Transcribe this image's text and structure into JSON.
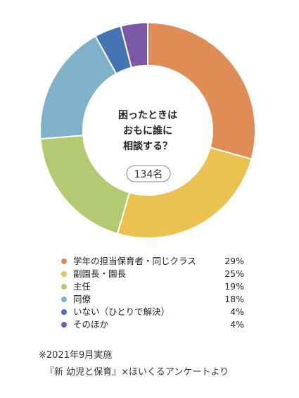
{
  "chart_data": {
    "type": "pie",
    "style": "donut",
    "center_text": [
      "困ったときは",
      "おもに誰に",
      "相談する？"
    ],
    "total_label": "134名",
    "categories": [
      "学年の担当保育者・同じクラス",
      "副園長・園長",
      "主任",
      "同僚",
      "いない（ひとりで解決）",
      "そのほか"
    ],
    "values": [
      29,
      25,
      19,
      18,
      4,
      4
    ],
    "value_labels": [
      "29%",
      "25%",
      "19%",
      "18%",
      "4%",
      "4%"
    ],
    "colors": [
      "#e08c56",
      "#ebc250",
      "#b3c972",
      "#7fb2c8",
      "#4574b4",
      "#7b57a8"
    ],
    "legend_position": "bottom"
  },
  "footer": {
    "date": "※2021年9月実施",
    "source": "『新 幼児と保育』×ほいくるアンケートより"
  }
}
